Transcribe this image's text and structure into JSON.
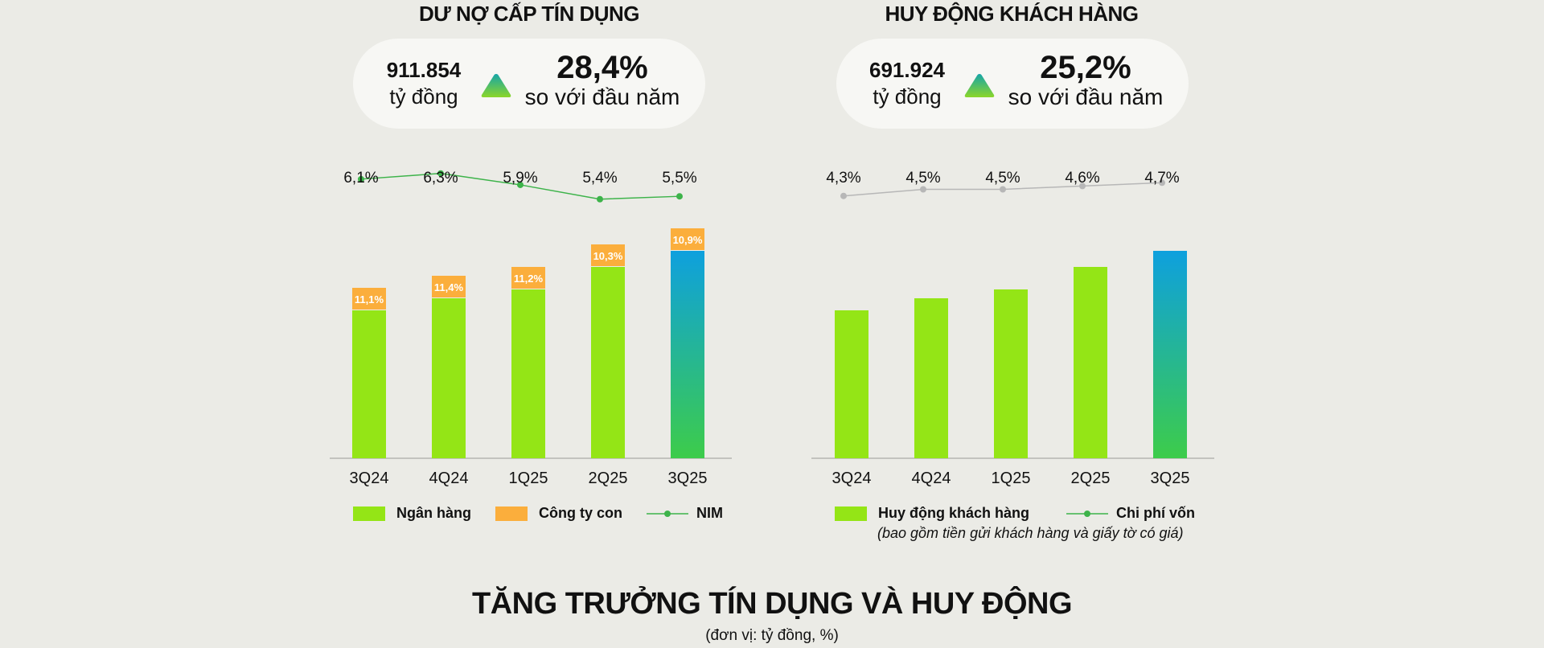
{
  "title": "TĂNG TRƯỞNG TÍN DỤNG VÀ HUY ĐỘNG",
  "subtitle": "(đơn vị: tỷ đồng, %)",
  "colors": {
    "bank": "#94e516",
    "subsidiary": "#fbae3c",
    "nim_line": "#3db34a",
    "cost_line": "#b7b7b7",
    "highlight_top": "#0ea0de",
    "highlight_bottom": "#3dcc4a",
    "arrow_top": "#16a5a8",
    "arrow_bottom": "#8bd629"
  },
  "panels": {
    "credit": {
      "title": "DƯ NỢ CẤP TÍN DỤNG",
      "amount": "911.854",
      "amount_unit": "tỷ đồng",
      "growth": "28,4%",
      "growth_label": "so với đầu năm",
      "arrow_icon": "triangle-up-icon",
      "legend": {
        "bank": "Ngân hàng",
        "subsidiary": "Công ty con",
        "line": "NIM"
      }
    },
    "deposit": {
      "title": "HUY ĐỘNG KHÁCH HÀNG",
      "amount": "691.924",
      "amount_unit": "tỷ đồng",
      "growth": "25,2%",
      "growth_label": "so với đầu năm",
      "arrow_icon": "triangle-up-icon",
      "legend": {
        "bars": "Huy động khách hàng",
        "line": "Chi phí vốn"
      },
      "note": "(bao gồm tiền gửi khách hàng và giấy tờ có giá)"
    }
  },
  "chart_data": [
    {
      "type": "bar",
      "stacked": true,
      "title": "DƯ NỢ CẤP TÍN DỤNG",
      "categories": [
        "3Q24",
        "4Q24",
        "1Q25",
        "2Q25",
        "3Q25"
      ],
      "series": [
        {
          "name": "Ngân hàng",
          "values": [
            184,
            199,
            210,
            238,
            258
          ]
        },
        {
          "name": "Công ty con",
          "values": [
            28,
            28,
            28,
            28,
            28
          ],
          "labels": [
            "11,1%",
            "11,4%",
            "11,2%",
            "10,3%",
            "10,9%"
          ]
        }
      ],
      "line": {
        "name": "NIM",
        "values": [
          6.1,
          6.3,
          5.9,
          5.4,
          5.5
        ],
        "labels": [
          "6,1%",
          "6,3%",
          "5,9%",
          "5,4%",
          "5,5%"
        ]
      },
      "ylim": [
        0,
        300
      ],
      "grid": false,
      "legend_position": "bottom"
    },
    {
      "type": "bar",
      "title": "HUY ĐỘNG KHÁCH HÀNG",
      "categories": [
        "3Q24",
        "4Q24",
        "1Q25",
        "2Q25",
        "3Q25"
      ],
      "series": [
        {
          "name": "Huy động khách hàng",
          "values": [
            184,
            199,
            210,
            238,
            258
          ]
        }
      ],
      "line": {
        "name": "Chi phí vốn",
        "values": [
          4.3,
          4.5,
          4.5,
          4.6,
          4.7
        ],
        "labels": [
          "4,3%",
          "4,5%",
          "4,5%",
          "4,6%",
          "4,7%"
        ]
      },
      "ylim": [
        0,
        300
      ],
      "grid": false,
      "legend_position": "bottom"
    }
  ]
}
